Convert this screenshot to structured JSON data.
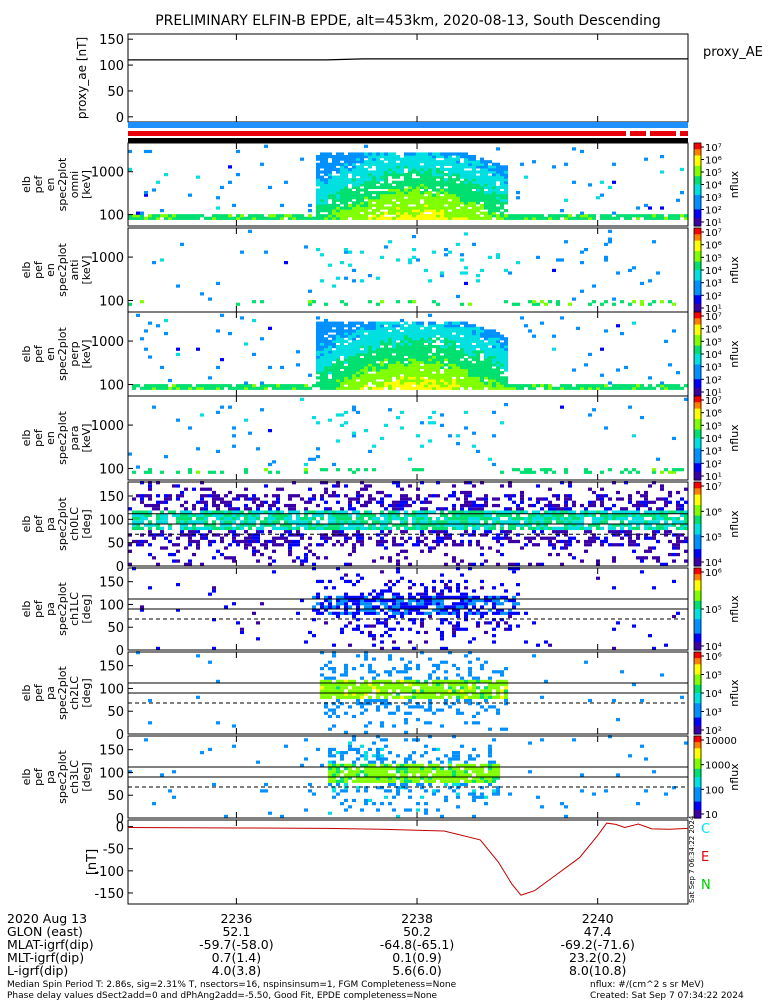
{
  "title": "PRELIMINARY ELFIN-B EPDE, alt=453km, 2020-08-13, South Descending",
  "colors": {
    "sky_bar": "#1f8fff",
    "red_bar": "#e8000b",
    "black_bar": "#000000",
    "ae_line": "#000000",
    "dB_line": "#c00000",
    "legend_C": "#00e5ff",
    "legend_E": "#e8000b",
    "legend_N": "#00c800"
  },
  "chart_data": [
    {
      "type": "line",
      "id": "proxy_ae",
      "ylabel": "proxy_ae [nT]",
      "legend": "proxy_AE",
      "yticks": [
        "150",
        "100",
        "50",
        "0"
      ],
      "ylim": [
        -10,
        160
      ],
      "x": [
        2234.8,
        2237.0,
        2237.4,
        2241.0
      ],
      "y": [
        110,
        110,
        112,
        112
      ]
    },
    {
      "type": "heatmap",
      "id": "en_omni",
      "ylabel": [
        "elb",
        "pef",
        "en",
        "spec2plot",
        "omni",
        "[keV]"
      ],
      "yticks": [
        "1000",
        "100"
      ],
      "cbar_label": "nflux",
      "cbar_ticks": [
        "10⁷",
        "10⁶",
        "10⁵",
        "10⁴",
        "10³",
        "10²",
        "10¹"
      ],
      "note": "electron energy spectrogram, omni"
    },
    {
      "type": "heatmap",
      "id": "en_anti",
      "ylabel": [
        "elb",
        "pef",
        "en",
        "spec2plot",
        "anti",
        "[keV]"
      ],
      "yticks": [
        "1000",
        "100"
      ],
      "cbar_label": "nflux",
      "cbar_ticks": [
        "10⁷",
        "10⁶",
        "10⁵",
        "10⁴",
        "10³",
        "10²",
        "10¹"
      ]
    },
    {
      "type": "heatmap",
      "id": "en_perp",
      "ylabel": [
        "elb",
        "pef",
        "en",
        "spec2plot",
        "perp",
        "[keV]"
      ],
      "yticks": [
        "1000",
        "100"
      ],
      "cbar_label": "nflux",
      "cbar_ticks": [
        "10⁷",
        "10⁶",
        "10⁵",
        "10⁴",
        "10³",
        "10²",
        "10¹"
      ]
    },
    {
      "type": "heatmap",
      "id": "en_para",
      "ylabel": [
        "elb",
        "pef",
        "en",
        "spec2plot",
        "para",
        "[keV]"
      ],
      "yticks": [
        "1000",
        "100"
      ],
      "cbar_label": "nflux",
      "cbar_ticks": [
        "10⁷",
        "10⁶",
        "10⁵",
        "10⁴",
        "10³",
        "10²",
        "10¹"
      ]
    },
    {
      "type": "heatmap",
      "id": "pa_ch0",
      "ylabel": [
        "elb",
        "pef",
        "pa",
        "spec2plot",
        "ch0LC",
        "[deg]"
      ],
      "yticks": [
        "150",
        "100",
        "50",
        "0"
      ],
      "ylim": [
        0,
        180
      ],
      "cbar_label": "nflux",
      "cbar_ticks": [
        "10⁷",
        "10⁶",
        "10⁵",
        "10⁴"
      ]
    },
    {
      "type": "heatmap",
      "id": "pa_ch1",
      "ylabel": [
        "elb",
        "pef",
        "pa",
        "spec2plot",
        "ch1LC",
        "[deg]"
      ],
      "yticks": [
        "150",
        "100",
        "50",
        "0"
      ],
      "ylim": [
        0,
        180
      ],
      "cbar_label": "nflux",
      "cbar_ticks": [
        "10⁶",
        "10⁵",
        "10⁴"
      ]
    },
    {
      "type": "heatmap",
      "id": "pa_ch2",
      "ylabel": [
        "elb",
        "pef",
        "pa",
        "spec2plot",
        "ch2LC",
        "[deg]"
      ],
      "yticks": [
        "150",
        "100",
        "50",
        "0"
      ],
      "ylim": [
        0,
        180
      ],
      "cbar_label": "nflux",
      "cbar_ticks": [
        "10⁶",
        "10⁵",
        "10⁴",
        "10³",
        "10²"
      ]
    },
    {
      "type": "heatmap",
      "id": "pa_ch3",
      "ylabel": [
        "elb",
        "pef",
        "pa",
        "spec2plot",
        "ch3LC",
        "[deg]"
      ],
      "yticks": [
        "150",
        "100",
        "50",
        "0"
      ],
      "ylim": [
        0,
        180
      ],
      "cbar_label": "nflux",
      "cbar_ticks": [
        "10000",
        "1000",
        "100",
        "10"
      ]
    },
    {
      "type": "line",
      "id": "dB",
      "ylabel": "[nT]",
      "yticks": [
        "0",
        "-50",
        "-100",
        "-150"
      ],
      "ylim": [
        -175,
        15
      ],
      "legend": [
        "C",
        "E",
        "N"
      ],
      "x": [
        2234.8,
        2236.0,
        2237.0,
        2237.6,
        2238.3,
        2238.7,
        2238.9,
        2239.05,
        2239.15,
        2239.3,
        2239.5,
        2239.8,
        2240.0,
        2240.1,
        2240.2,
        2240.3,
        2240.45,
        2240.6,
        2240.8,
        2241.0
      ],
      "y": [
        -2,
        -3,
        -4,
        -6,
        -10,
        -30,
        -80,
        -130,
        -155,
        -145,
        -115,
        -70,
        -20,
        8,
        5,
        -2,
        6,
        -5,
        -6,
        -4
      ]
    }
  ],
  "x_axis": {
    "ticks": [
      "2236",
      "2238",
      "2240"
    ],
    "tick_values": [
      2236,
      2238,
      2240
    ],
    "range": [
      2234.8,
      2241.0
    ]
  },
  "footer": {
    "rows": [
      {
        "label": "2020 Aug 13",
        "v1": "2236",
        "v2": "2238",
        "v3": "2240"
      },
      {
        "label": "GLON (east)",
        "v1": "52.1",
        "v2": "50.2",
        "v3": "47.4"
      },
      {
        "label": "MLAT-igrf(dip)",
        "v1": "-59.7(-58.0)",
        "v2": "-64.8(-65.1)",
        "v3": "-69.2(-71.6)"
      },
      {
        "label": "MLT-igrf(dip)",
        "v1": "0.7(1.4)",
        "v2": "0.1(0.9)",
        "v3": "23.2(0.2)"
      },
      {
        "label": "L-igrf(dip)",
        "v1": "4.0(3.8)",
        "v2": "5.6(6.0)",
        "v3": "8.0(10.8)"
      }
    ],
    "note1": "Median Spin Period T: 2.86s, sig=2.31% T, nsectors=16, nspinsinsum=1, FGM Completeness=None",
    "note2": "Phase delay values dSect2add=0 and dPhAng2add=-5.50, Good Fit, EPDE completeness=None",
    "units": "nflux: #/(cm^2 s sr MeV)",
    "created": "Created: Sat Sep  7 07:34:22 2024",
    "stamp": "Sat Sep  7 06:34:22 2024"
  }
}
